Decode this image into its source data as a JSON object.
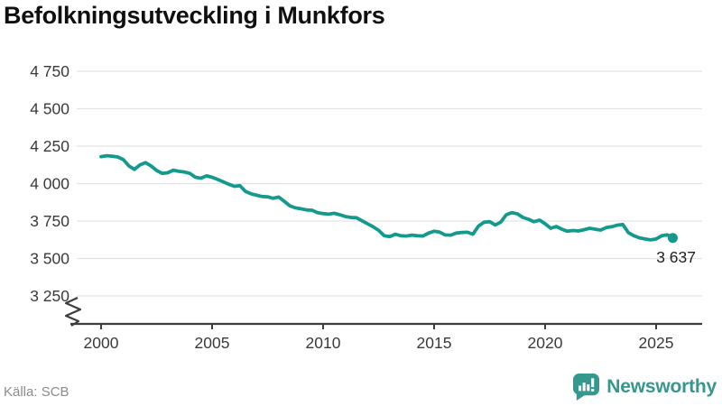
{
  "footer": {
    "source": "Källa: SCB",
    "brand": "Newsworthy"
  },
  "colors": {
    "line": "#149a8d",
    "grid": "#e3e3e3",
    "axis": "#3d3d3d",
    "tick_text": "#3a3a3a",
    "annotation_text": "#1f1f1f",
    "brand_teal": "#35978e"
  },
  "chart_data": {
    "type": "line",
    "title": "Befolkningsutveckling i Munkfors",
    "xlabel": "",
    "ylabel": "",
    "x_tick_values": [
      2000,
      2005,
      2010,
      2015,
      2020,
      2025
    ],
    "x_tick_labels": [
      "2000",
      "2005",
      "2010",
      "2015",
      "2020",
      "2025"
    ],
    "y_tick_values": [
      4750,
      4500,
      4250,
      4000,
      3750,
      3500,
      3250
    ],
    "y_tick_labels": [
      "4 750",
      "4 500",
      "4 250",
      "4 000",
      "3 750",
      "3 500",
      "3 250"
    ],
    "ylim": [
      3250,
      4750
    ],
    "y_axis_break": true,
    "grid": "horizontal",
    "legend": "none",
    "last_value": 3637,
    "last_value_label": "3 637",
    "series": [
      {
        "name": "Befolkning",
        "points": [
          [
            2000.0,
            4180
          ],
          [
            2000.25,
            4186
          ],
          [
            2000.5,
            4183
          ],
          [
            2000.75,
            4178
          ],
          [
            2001.0,
            4160
          ],
          [
            2001.25,
            4118
          ],
          [
            2001.5,
            4095
          ],
          [
            2001.75,
            4125
          ],
          [
            2002.0,
            4140
          ],
          [
            2002.25,
            4118
          ],
          [
            2002.5,
            4088
          ],
          [
            2002.75,
            4068
          ],
          [
            2003.0,
            4072
          ],
          [
            2003.25,
            4090
          ],
          [
            2003.5,
            4082
          ],
          [
            2003.75,
            4078
          ],
          [
            2004.0,
            4068
          ],
          [
            2004.25,
            4042
          ],
          [
            2004.5,
            4036
          ],
          [
            2004.75,
            4052
          ],
          [
            2005.0,
            4042
          ],
          [
            2005.25,
            4028
          ],
          [
            2005.5,
            4012
          ],
          [
            2005.75,
            3996
          ],
          [
            2006.0,
            3982
          ],
          [
            2006.25,
            3986
          ],
          [
            2006.5,
            3948
          ],
          [
            2006.75,
            3932
          ],
          [
            2007.0,
            3922
          ],
          [
            2007.25,
            3914
          ],
          [
            2007.5,
            3912
          ],
          [
            2007.75,
            3902
          ],
          [
            2008.0,
            3910
          ],
          [
            2008.25,
            3882
          ],
          [
            2008.5,
            3852
          ],
          [
            2008.75,
            3838
          ],
          [
            2009.0,
            3832
          ],
          [
            2009.25,
            3824
          ],
          [
            2009.5,
            3822
          ],
          [
            2009.75,
            3806
          ],
          [
            2010.0,
            3800
          ],
          [
            2010.25,
            3796
          ],
          [
            2010.5,
            3802
          ],
          [
            2010.75,
            3792
          ],
          [
            2011.0,
            3780
          ],
          [
            2011.25,
            3774
          ],
          [
            2011.5,
            3772
          ],
          [
            2011.75,
            3752
          ],
          [
            2012.0,
            3732
          ],
          [
            2012.25,
            3712
          ],
          [
            2012.5,
            3688
          ],
          [
            2012.75,
            3652
          ],
          [
            2013.0,
            3646
          ],
          [
            2013.25,
            3662
          ],
          [
            2013.5,
            3652
          ],
          [
            2013.75,
            3650
          ],
          [
            2014.0,
            3656
          ],
          [
            2014.25,
            3652
          ],
          [
            2014.5,
            3650
          ],
          [
            2014.75,
            3670
          ],
          [
            2015.0,
            3682
          ],
          [
            2015.25,
            3676
          ],
          [
            2015.5,
            3657
          ],
          [
            2015.75,
            3656
          ],
          [
            2016.0,
            3670
          ],
          [
            2016.25,
            3674
          ],
          [
            2016.5,
            3675
          ],
          [
            2016.75,
            3662
          ],
          [
            2017.0,
            3716
          ],
          [
            2017.25,
            3742
          ],
          [
            2017.5,
            3746
          ],
          [
            2017.75,
            3724
          ],
          [
            2018.0,
            3742
          ],
          [
            2018.25,
            3792
          ],
          [
            2018.5,
            3806
          ],
          [
            2018.75,
            3798
          ],
          [
            2019.0,
            3774
          ],
          [
            2019.25,
            3762
          ],
          [
            2019.5,
            3746
          ],
          [
            2019.75,
            3756
          ],
          [
            2020.0,
            3732
          ],
          [
            2020.25,
            3702
          ],
          [
            2020.5,
            3714
          ],
          [
            2020.75,
            3696
          ],
          [
            2021.0,
            3682
          ],
          [
            2021.25,
            3687
          ],
          [
            2021.5,
            3684
          ],
          [
            2021.75,
            3692
          ],
          [
            2022.0,
            3702
          ],
          [
            2022.25,
            3696
          ],
          [
            2022.5,
            3690
          ],
          [
            2022.75,
            3706
          ],
          [
            2023.0,
            3712
          ],
          [
            2023.25,
            3722
          ],
          [
            2023.5,
            3727
          ],
          [
            2023.75,
            3672
          ],
          [
            2024.0,
            3652
          ],
          [
            2024.25,
            3638
          ],
          [
            2024.5,
            3630
          ],
          [
            2024.75,
            3624
          ],
          [
            2025.0,
            3630
          ],
          [
            2025.25,
            3652
          ],
          [
            2025.5,
            3658
          ],
          [
            2025.75,
            3637
          ]
        ]
      }
    ]
  }
}
